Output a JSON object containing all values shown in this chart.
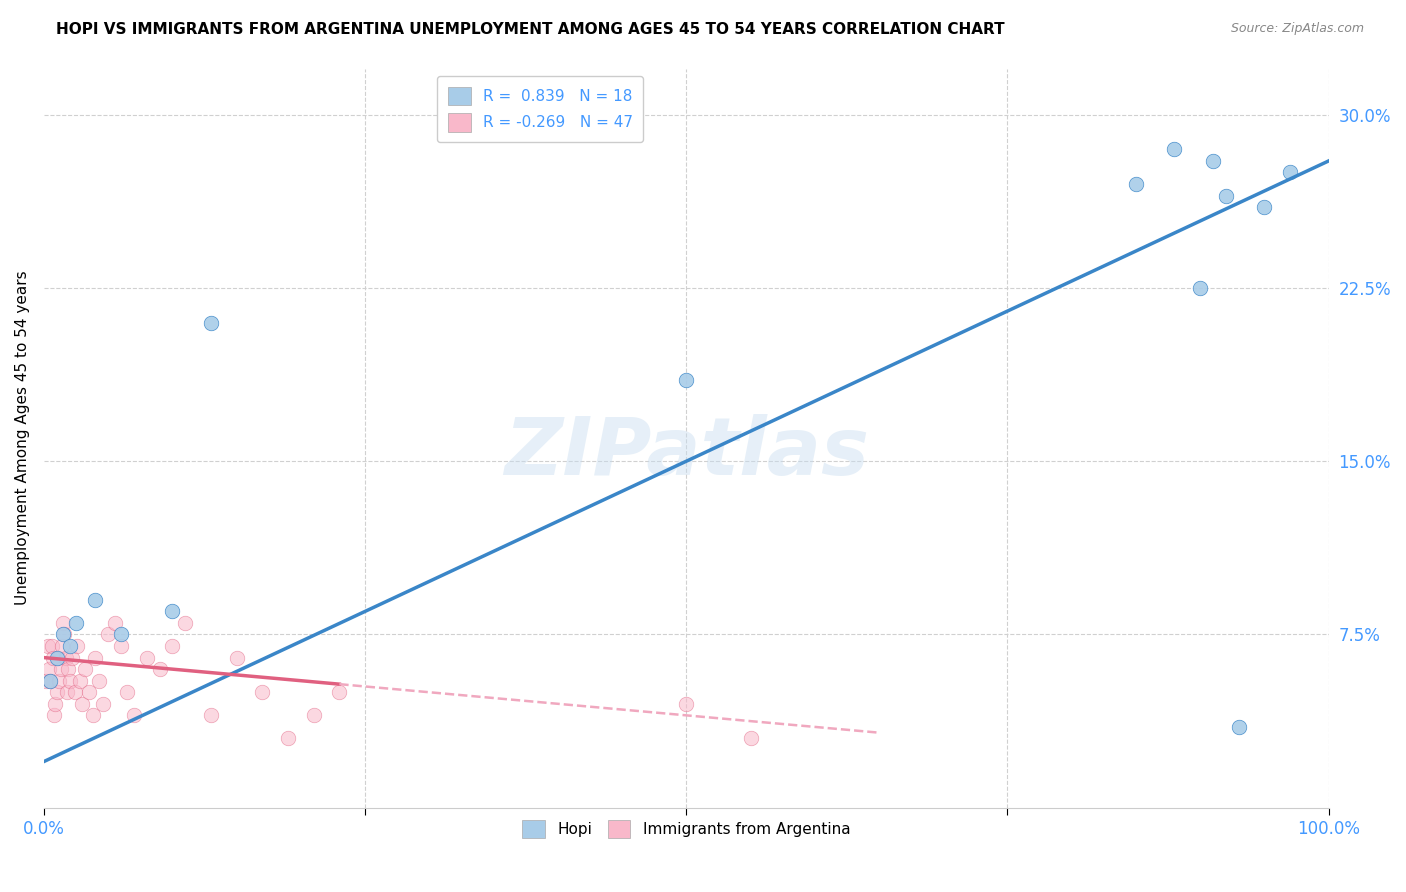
{
  "title": "HOPI VS IMMIGRANTS FROM ARGENTINA UNEMPLOYMENT AMONG AGES 45 TO 54 YEARS CORRELATION CHART",
  "source": "Source: ZipAtlas.com",
  "xlabel": "",
  "ylabel": "Unemployment Among Ages 45 to 54 years",
  "xlim": [
    0.0,
    1.0
  ],
  "ylim": [
    0.0,
    0.32
  ],
  "xticks": [
    0.0,
    0.25,
    0.5,
    0.75,
    1.0
  ],
  "xtick_labels": [
    "0.0%",
    "",
    "",
    "",
    "100.0%"
  ],
  "yticks": [
    0.0,
    0.075,
    0.15,
    0.225,
    0.3
  ],
  "ytick_labels": [
    "",
    "7.5%",
    "15.0%",
    "22.5%",
    "30.0%"
  ],
  "hopi_color": "#a8cce8",
  "argentina_color": "#f9b8ca",
  "hopi_line_color": "#3a86c8",
  "argentina_line_color": "#e06080",
  "argentina_line_dashed_color": "#f0a8bf",
  "R_hopi": 0.839,
  "N_hopi": 18,
  "R_argentina": -0.269,
  "N_argentina": 47,
  "legend_label_hopi": "Hopi",
  "legend_label_argentina": "Immigrants from Argentina",
  "watermark": "ZIPatlas",
  "hopi_x": [
    0.005,
    0.01,
    0.015,
    0.02,
    0.025,
    0.04,
    0.06,
    0.1,
    0.13,
    0.5,
    0.85,
    0.88,
    0.9,
    0.91,
    0.92,
    0.93,
    0.95,
    0.97
  ],
  "hopi_y": [
    0.055,
    0.065,
    0.075,
    0.07,
    0.08,
    0.09,
    0.075,
    0.085,
    0.21,
    0.185,
    0.27,
    0.285,
    0.225,
    0.28,
    0.265,
    0.035,
    0.26,
    0.275
  ],
  "argentina_x": [
    0.002,
    0.003,
    0.004,
    0.005,
    0.006,
    0.007,
    0.008,
    0.009,
    0.01,
    0.011,
    0.012,
    0.013,
    0.014,
    0.015,
    0.016,
    0.017,
    0.018,
    0.019,
    0.02,
    0.022,
    0.024,
    0.026,
    0.028,
    0.03,
    0.032,
    0.035,
    0.038,
    0.04,
    0.043,
    0.046,
    0.05,
    0.055,
    0.06,
    0.065,
    0.07,
    0.08,
    0.09,
    0.1,
    0.11,
    0.13,
    0.15,
    0.17,
    0.19,
    0.21,
    0.23,
    0.5,
    0.55
  ],
  "argentina_y": [
    0.055,
    0.07,
    0.06,
    0.055,
    0.07,
    0.065,
    0.04,
    0.045,
    0.05,
    0.065,
    0.055,
    0.06,
    0.07,
    0.08,
    0.075,
    0.065,
    0.05,
    0.06,
    0.055,
    0.065,
    0.05,
    0.07,
    0.055,
    0.045,
    0.06,
    0.05,
    0.04,
    0.065,
    0.055,
    0.045,
    0.075,
    0.08,
    0.07,
    0.05,
    0.04,
    0.065,
    0.06,
    0.07,
    0.08,
    0.04,
    0.065,
    0.05,
    0.03,
    0.04,
    0.05,
    0.045,
    0.03
  ],
  "background_color": "#ffffff",
  "grid_color": "#d0d0d0",
  "axis_color": "#4499ff",
  "title_fontsize": 11,
  "axis_label_fontsize": 11,
  "tick_fontsize": 12,
  "legend_fontsize": 11,
  "hopi_line_intercept": 0.02,
  "hopi_line_slope": 0.26,
  "arg_line_intercept": 0.065,
  "arg_line_slope": -0.05
}
